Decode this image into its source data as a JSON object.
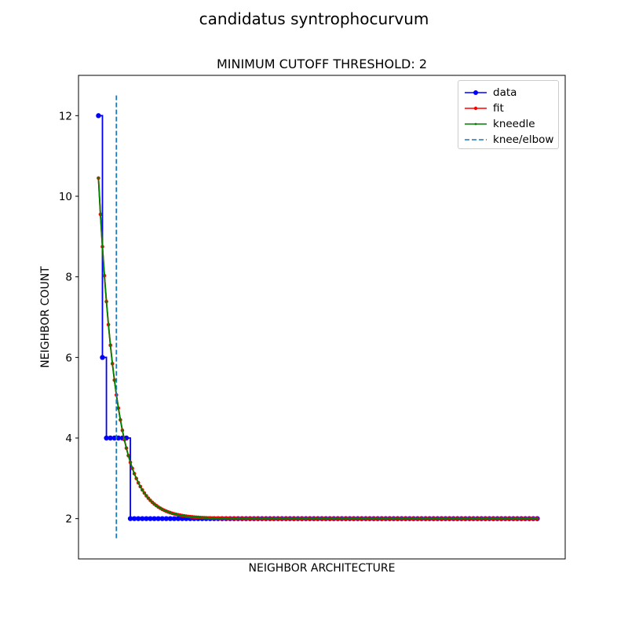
{
  "figure": {
    "suptitle": "candidatus syntrophocurvum"
  },
  "chart_data": {
    "type": "line",
    "title": "MINIMUM CUTOFF THRESHOLD: 2",
    "xlabel": "NEIGHBOR ARCHITECTURE",
    "ylabel": "NEIGHBOR COUNT",
    "xlim": [
      -4,
      118
    ],
    "ylim": [
      1.0,
      13.0
    ],
    "yticks": [
      2,
      4,
      6,
      8,
      10,
      12
    ],
    "x_ticks_shown": false,
    "grid": false,
    "legend_position": "top-right",
    "series": [
      {
        "name": "data",
        "color": "#0000ff",
        "marker": "circle",
        "draw": "steps",
        "segments": [
          {
            "x_start": 1,
            "x_end": 1,
            "y": 12
          },
          {
            "x_start": 2,
            "x_end": 2,
            "y": 6
          },
          {
            "x_start": 3,
            "x_end": 8,
            "y": 4
          },
          {
            "x_start": 9,
            "x_end": 111,
            "y": 2
          }
        ]
      },
      {
        "name": "fit",
        "color": "#ff0000",
        "marker": "small-circle",
        "model": "exponential decay",
        "asymptote": 2.0,
        "amplitude_at_first_x": 8.45,
        "decay_rate": 0.225,
        "x_range": [
          1,
          111
        ]
      },
      {
        "name": "kneedle",
        "color": "#008000",
        "marker": "point",
        "model": "exponential decay",
        "asymptote": 2.0,
        "amplitude_at_first_x": 8.45,
        "decay_rate": 0.225,
        "x_range": [
          1,
          111
        ]
      }
    ],
    "vlines": [
      {
        "name": "knee/elbow",
        "x": 5.5,
        "color": "#1f77b4",
        "style": "dashed",
        "y_range": [
          1.5,
          12.5
        ]
      }
    ]
  },
  "legend": {
    "items": [
      {
        "label": "data",
        "color": "#0000ff",
        "style": "line-marker"
      },
      {
        "label": "fit",
        "color": "#ff0000",
        "style": "line-marker-small"
      },
      {
        "label": "kneedle",
        "color": "#008000",
        "style": "line-point"
      },
      {
        "label": "knee/elbow",
        "color": "#1f77b4",
        "style": "dashed"
      }
    ]
  }
}
